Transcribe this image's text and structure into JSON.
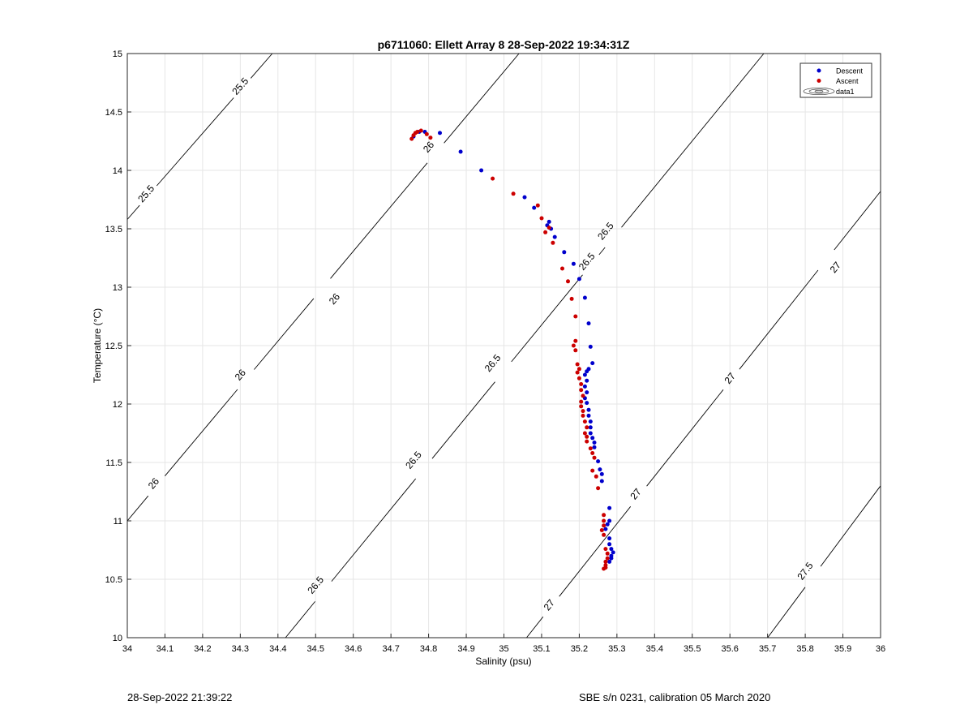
{
  "chart_data": {
    "type": "scatter",
    "title": "p6711060: Ellett Array 8 28-Sep-2022 19:34:31Z",
    "xlabel": "Salinity (psu)",
    "ylabel": "Temperature (°C)",
    "xlim": [
      34,
      36
    ],
    "ylim": [
      10,
      15
    ],
    "xticks": [
      34,
      34.1,
      34.2,
      34.3,
      34.4,
      34.5,
      34.6,
      34.7,
      34.8,
      34.9,
      35,
      35.1,
      35.2,
      35.3,
      35.4,
      35.5,
      35.6,
      35.7,
      35.8,
      35.9,
      36
    ],
    "xtick_labels": [
      "34",
      "34.1",
      "34.2",
      "34.3",
      "34.4",
      "34.5",
      "34.6",
      "34.7",
      "34.8",
      "34.9",
      "35",
      "35.1",
      "35.2",
      "35.3",
      "35.4",
      "35.5",
      "35.6",
      "35.7",
      "35.8",
      "35.9",
      "36"
    ],
    "yticks": [
      10,
      10.5,
      11,
      11.5,
      12,
      12.5,
      13,
      13.5,
      14,
      14.5,
      15
    ],
    "ytick_labels": [
      "10",
      "10.5",
      "11",
      "11.5",
      "12",
      "12.5",
      "13",
      "13.5",
      "14",
      "14.5",
      "15"
    ],
    "grid": true,
    "legend_position": "top-right",
    "legend": [
      "Descent",
      "Ascent",
      "data1"
    ],
    "colors": {
      "descent": "#0000cc",
      "ascent": "#cc0000",
      "contour": "#000000",
      "grid": "#e6e6e6"
    },
    "series": [
      {
        "name": "Descent",
        "points": [
          [
            34.76,
            14.29
          ],
          [
            34.775,
            14.33
          ],
          [
            34.79,
            14.33
          ],
          [
            34.83,
            14.32
          ],
          [
            34.885,
            14.16
          ],
          [
            34.94,
            14.0
          ],
          [
            35.055,
            13.77
          ],
          [
            35.08,
            13.68
          ],
          [
            35.115,
            13.53
          ],
          [
            35.12,
            13.56
          ],
          [
            35.125,
            13.5
          ],
          [
            35.135,
            13.43
          ],
          [
            35.16,
            13.3
          ],
          [
            35.185,
            13.2
          ],
          [
            35.2,
            13.07
          ],
          [
            35.215,
            12.91
          ],
          [
            35.225,
            12.69
          ],
          [
            35.23,
            12.49
          ],
          [
            35.235,
            12.35
          ],
          [
            35.225,
            12.3
          ],
          [
            35.22,
            12.28
          ],
          [
            35.215,
            12.25
          ],
          [
            35.22,
            12.2
          ],
          [
            35.215,
            12.15
          ],
          [
            35.22,
            12.1
          ],
          [
            35.215,
            12.05
          ],
          [
            35.22,
            12.01
          ],
          [
            35.225,
            11.95
          ],
          [
            35.225,
            11.9
          ],
          [
            35.23,
            11.85
          ],
          [
            35.23,
            11.8
          ],
          [
            35.23,
            11.75
          ],
          [
            35.235,
            11.71
          ],
          [
            35.24,
            11.67
          ],
          [
            35.24,
            11.63
          ],
          [
            35.25,
            11.51
          ],
          [
            35.255,
            11.44
          ],
          [
            35.26,
            11.4
          ],
          [
            35.26,
            11.34
          ],
          [
            35.28,
            11.11
          ],
          [
            35.28,
            11.0
          ],
          [
            35.275,
            10.97
          ],
          [
            35.27,
            10.93
          ],
          [
            35.28,
            10.85
          ],
          [
            35.28,
            10.8
          ],
          [
            35.285,
            10.76
          ],
          [
            35.29,
            10.73
          ],
          [
            35.285,
            10.7
          ],
          [
            35.285,
            10.68
          ],
          [
            35.28,
            10.65
          ]
        ]
      },
      {
        "name": "Ascent",
        "points": [
          [
            34.755,
            14.27
          ],
          [
            34.76,
            14.3
          ],
          [
            34.765,
            14.32
          ],
          [
            34.77,
            14.33
          ],
          [
            34.78,
            14.34
          ],
          [
            34.795,
            14.31
          ],
          [
            34.805,
            14.28
          ],
          [
            34.97,
            13.93
          ],
          [
            35.025,
            13.8
          ],
          [
            35.09,
            13.7
          ],
          [
            35.1,
            13.59
          ],
          [
            35.11,
            13.47
          ],
          [
            35.12,
            13.51
          ],
          [
            35.13,
            13.38
          ],
          [
            35.155,
            13.16
          ],
          [
            35.17,
            13.05
          ],
          [
            35.18,
            12.9
          ],
          [
            35.19,
            12.75
          ],
          [
            35.19,
            12.54
          ],
          [
            35.185,
            12.5
          ],
          [
            35.19,
            12.46
          ],
          [
            35.195,
            12.34
          ],
          [
            35.2,
            12.3
          ],
          [
            35.195,
            12.27
          ],
          [
            35.2,
            12.22
          ],
          [
            35.205,
            12.17
          ],
          [
            35.205,
            12.12
          ],
          [
            35.21,
            12.07
          ],
          [
            35.205,
            12.02
          ],
          [
            35.205,
            11.98
          ],
          [
            35.21,
            11.94
          ],
          [
            35.21,
            11.9
          ],
          [
            35.215,
            11.85
          ],
          [
            35.22,
            11.8
          ],
          [
            35.215,
            11.75
          ],
          [
            35.22,
            11.72
          ],
          [
            35.22,
            11.68
          ],
          [
            35.23,
            11.62
          ],
          [
            35.235,
            11.58
          ],
          [
            35.24,
            11.54
          ],
          [
            35.235,
            11.43
          ],
          [
            35.245,
            11.38
          ],
          [
            35.25,
            11.28
          ],
          [
            35.265,
            11.05
          ],
          [
            35.265,
            11.0
          ],
          [
            35.265,
            10.96
          ],
          [
            35.26,
            10.92
          ],
          [
            35.265,
            10.88
          ],
          [
            35.27,
            10.76
          ],
          [
            35.275,
            10.72
          ],
          [
            35.275,
            10.68
          ],
          [
            35.27,
            10.65
          ],
          [
            35.27,
            10.62
          ],
          [
            35.27,
            10.6
          ],
          [
            35.265,
            10.59
          ]
        ]
      }
    ],
    "isopycnals": [
      {
        "value": 25.5,
        "labels": [
          "25.5",
          "25.5"
        ]
      },
      {
        "value": 26,
        "labels": [
          "26",
          "26",
          "26",
          "26"
        ]
      },
      {
        "value": 26.5,
        "labels": [
          "26.5",
          "26.5",
          "26.5",
          "26.5",
          "26.5"
        ]
      },
      {
        "value": 27,
        "labels": [
          "27",
          "27",
          "27",
          "27"
        ]
      },
      {
        "value": 27.5,
        "labels": [
          "27.5"
        ]
      }
    ]
  },
  "footer": {
    "left": "28-Sep-2022 21:39:22",
    "right": "SBE s/n 0231, calibration 05 March 2020"
  }
}
